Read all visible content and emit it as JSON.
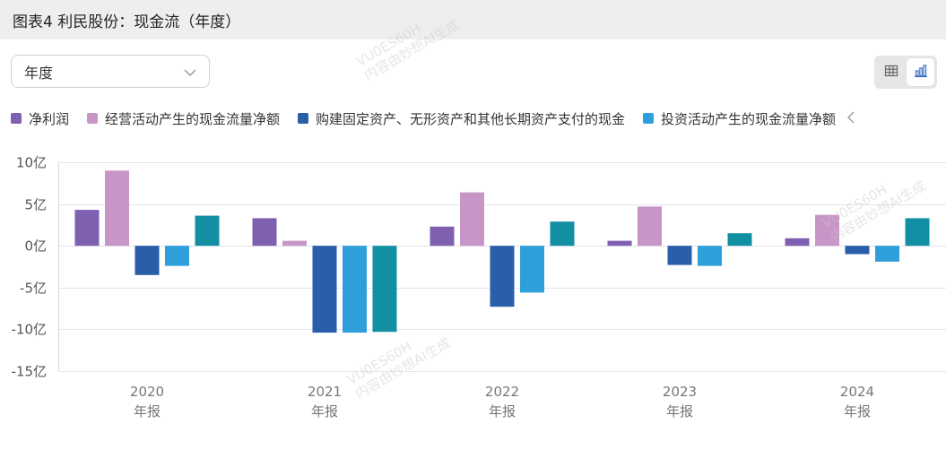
{
  "header": {
    "title": "图表4 利民股份：现金流（年度）"
  },
  "controls": {
    "period_label": "年度",
    "chevron_icon": "chevron-down-icon",
    "table_view_icon": "table-icon",
    "chart_view_icon": "bar-chart-icon"
  },
  "legend_more_icon": "chevron-left-icon",
  "watermark": {
    "line1": "VU0ES60H",
    "line2": "内容由妙想AI生成"
  },
  "colors": {
    "net_profit": "#7e5fb0",
    "operating_cf": "#c896c6",
    "capex": "#2a5ea8",
    "investing_cf": "#2f9fdc",
    "fifth_series": "#138fa3",
    "active_icon": "#3a6fc4"
  },
  "chart_data": {
    "type": "bar",
    "categories": [
      "2020",
      "2021",
      "2022",
      "2023",
      "2024"
    ],
    "category_sublabel": "年报",
    "series": [
      {
        "name": "净利润",
        "color": "#7e5fb0",
        "values": [
          4.3,
          3.3,
          2.3,
          0.6,
          0.9
        ]
      },
      {
        "name": "经营活动产生的现金流量净额",
        "color": "#c896c6",
        "values": [
          9.0,
          0.6,
          6.4,
          4.7,
          3.7
        ]
      },
      {
        "name": "购建固定资产、无形资产和其他长期资产支付的现金",
        "color": "#2a5ea8",
        "values": [
          -3.5,
          -10.4,
          -7.3,
          -2.3,
          -1.0
        ]
      },
      {
        "name": "投资活动产生的现金流量净额",
        "color": "#2f9fdc",
        "values": [
          -2.4,
          -10.4,
          -5.6,
          -2.4,
          -1.9
        ]
      },
      {
        "name": "",
        "color": "#138fa3",
        "values": [
          3.6,
          -10.3,
          2.9,
          1.5,
          3.3
        ]
      }
    ],
    "ylim": [
      -15,
      10
    ],
    "yticks": [
      10,
      5,
      0,
      -5,
      -10,
      -15
    ],
    "ytick_labels": [
      "10亿",
      "5亿",
      "0亿",
      "-5亿",
      "-10亿",
      "-15亿"
    ],
    "grid": true,
    "legend": "top-left",
    "title": "",
    "xlabel": "",
    "ylabel": ""
  }
}
